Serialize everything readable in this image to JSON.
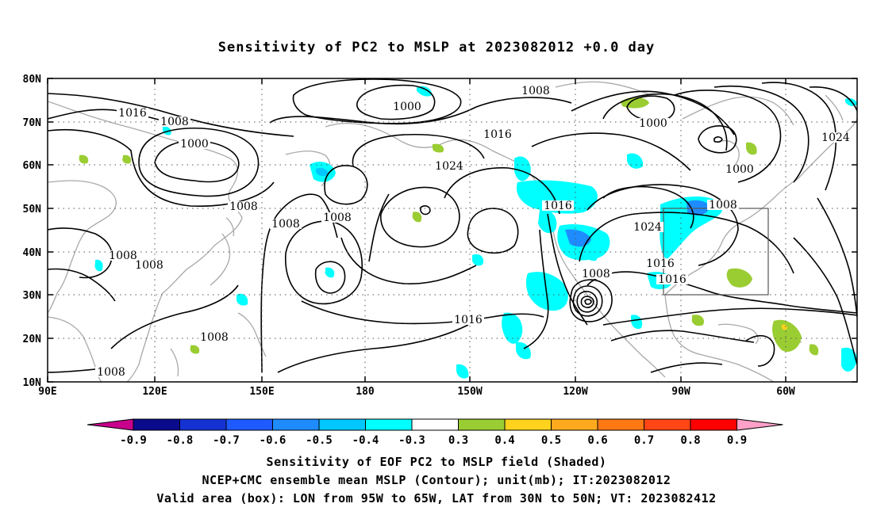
{
  "title": "Sensitivity of PC2 to MSLP at 2023082012 +0.0 day",
  "lat_labels": [
    "80N",
    "70N",
    "60N",
    "50N",
    "40N",
    "30N",
    "20N",
    "10N"
  ],
  "lon_labels": [
    "90E",
    "120E",
    "150E",
    "180",
    "150W",
    "120W",
    "90W",
    "60W"
  ],
  "contour_labels": [
    {
      "text": "1016"
    },
    {
      "text": "1008"
    },
    {
      "text": "1000"
    },
    {
      "text": "1008"
    },
    {
      "text": "1000"
    },
    {
      "text": "1008"
    },
    {
      "text": "1016"
    },
    {
      "text": "1024"
    },
    {
      "text": "1008"
    },
    {
      "text": "1000"
    },
    {
      "text": "1000"
    },
    {
      "text": "1024"
    },
    {
      "text": "1008"
    },
    {
      "text": "1016"
    },
    {
      "text": "1024"
    },
    {
      "text": "1008"
    },
    {
      "text": "1016"
    },
    {
      "text": "1016"
    },
    {
      "text": "1008"
    },
    {
      "text": "1008"
    },
    {
      "text": "1008"
    },
    {
      "text": "1008"
    },
    {
      "text": "1016"
    },
    {
      "text": "1008"
    }
  ],
  "colorbar": {
    "labels": [
      "-0.9",
      "-0.8",
      "-0.7",
      "-0.6",
      "-0.5",
      "-0.4",
      "-0.3",
      "0.3",
      "0.4",
      "0.5",
      "0.6",
      "0.7",
      "0.8",
      "0.9"
    ],
    "colors": [
      "#0a0a8c",
      "#1432d2",
      "#1e5aff",
      "#1e8cff",
      "#00c8ff",
      "#00ffff",
      "#ffffff",
      "#9acd32",
      "#ffd21e",
      "#ffaa1e",
      "#ff7814",
      "#ff4614",
      "#ff0000"
    ],
    "left_triangle_color": "#c8008c",
    "right_triangle_color": "#ffa0c8"
  },
  "captions": {
    "line1": "Sensitivity of EOF PC2 to MSLP field (Shaded)",
    "line2": "NCEP+CMC ensemble mean MSLP (Contour); unit(mb); IT:2023082012",
    "line3": "Valid area (box): LON from 95W to 65W, LAT from 30N to 50N; VT: 2023082412"
  },
  "valid_area": {
    "lon_min": -95,
    "lon_max": -65,
    "lat_min": 30,
    "lat_max": 50
  }
}
